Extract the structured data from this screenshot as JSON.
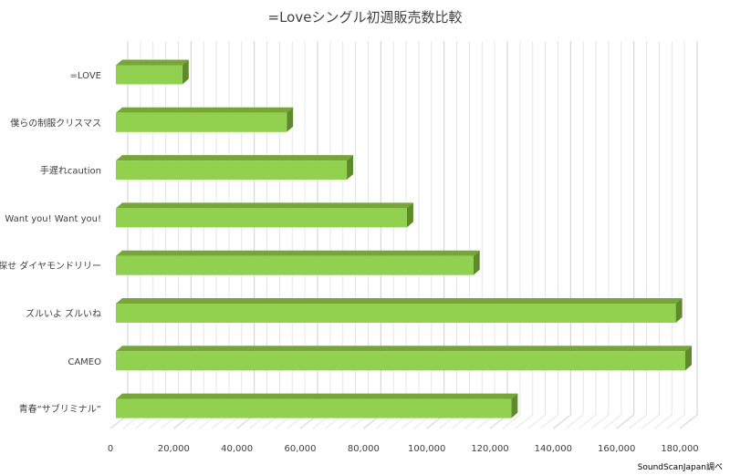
{
  "chart_data": {
    "type": "bar",
    "orientation": "horizontal",
    "style": "3d",
    "title": "=Loveシングル初週販売数比較",
    "source_note": "SoundScanJapan調べ",
    "categories": [
      "=LOVE",
      "僕らの制服クリスマス",
      "手遅れcaution",
      "Want you! Want you!",
      "探せ ダイヤモンドリリー",
      "ズルいよ ズルいね",
      "CAMEO",
      "青春“サブリミナル”"
    ],
    "values": [
      21000,
      54000,
      73000,
      92000,
      113000,
      177000,
      180000,
      125000
    ],
    "xlim": [
      0,
      180000
    ],
    "xticks": [
      "0",
      "20,000",
      "40,000",
      "60,000",
      "80,000",
      "100,000",
      "120,000",
      "140,000",
      "160,000",
      "180,000"
    ],
    "grid": true,
    "legend": "none",
    "colors": {
      "bar_front": "#92D050",
      "bar_top": "#76A637",
      "bar_side": "#5E8A2A",
      "grid": "#D9D9D9"
    }
  }
}
